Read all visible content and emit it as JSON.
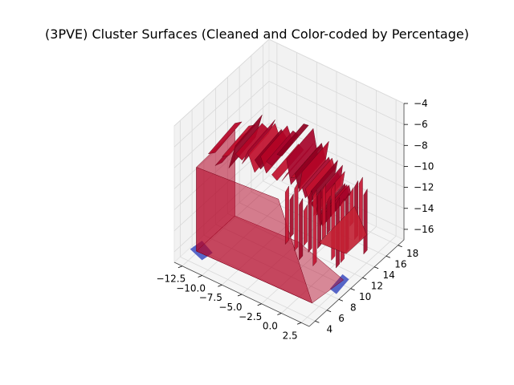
{
  "chart_data": {
    "type": "surface3d",
    "title": "(3PVE) Cluster Surfaces (Cleaned and Color-coded by Percentage)",
    "xlabel": "",
    "ylabel": "",
    "zlabel": "",
    "x_ticks": [
      -12.5,
      -10.0,
      -7.5,
      -5.0,
      -2.5,
      0.0,
      2.5
    ],
    "x_tick_labels": [
      "−12.5",
      "−10.0",
      "−7.5",
      "−5.0",
      "−2.5",
      "0.0",
      "2.5"
    ],
    "y_ticks": [
      4,
      6,
      8,
      10,
      12,
      14,
      16,
      18
    ],
    "y_tick_labels": [
      "4",
      "6",
      "8",
      "10",
      "12",
      "14",
      "16",
      "18"
    ],
    "z_ticks": [
      -16,
      -14,
      -12,
      -10,
      -8,
      -6,
      -4
    ],
    "z_tick_labels": [
      "−16",
      "−14",
      "−12",
      "−10",
      "−8",
      "−6",
      "−4"
    ],
    "xlim": [
      -13.5,
      3.5
    ],
    "ylim": [
      3,
      19
    ],
    "zlim": [
      -17,
      -4
    ],
    "grid": true,
    "colormap": "coolwarm",
    "colors": {
      "high_cluster": "#b40426",
      "low_cluster": "#3b4cc0",
      "pane": "#f2f2f2",
      "grid": "#d9d9d9"
    }
  }
}
